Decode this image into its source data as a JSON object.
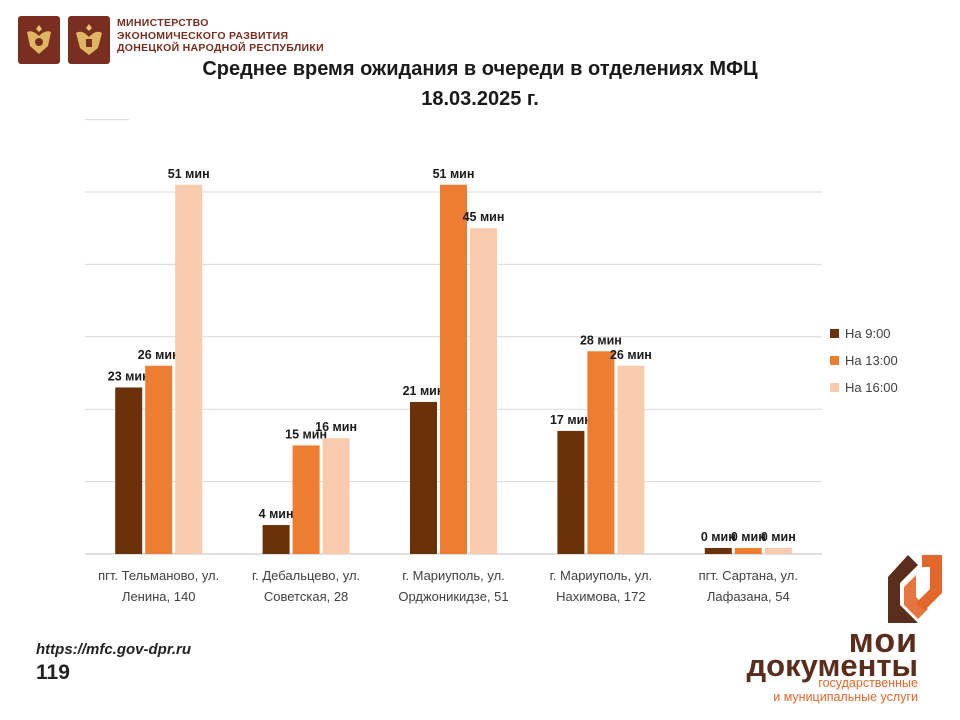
{
  "header": {
    "ministry_lines": [
      "МИНИСТЕРСТВО",
      "ЭКОНОМИЧЕСКОГО РАЗВИТИЯ",
      "ДОНЕЦКОЙ НАРОДНОЙ РЕСПУБЛИКИ"
    ],
    "emblem_icons": [
      "coat-of-arms-russia-icon",
      "coat-of-arms-dpr-icon"
    ]
  },
  "title_line1": "Среднее время ожидания в очереди в отделениях МФЦ",
  "title_line2": "18.03.2025   г.",
  "chart_data": {
    "type": "bar",
    "categories": [
      [
        "пгт. Тельманово,  ул.",
        "Ленина, 140"
      ],
      [
        "г. Дебальцево, ул.",
        "Советская, 28"
      ],
      [
        "г. Мариуполь,  ул.",
        "Орджоникидзе, 51"
      ],
      [
        "г. Мариуполь,  ул.",
        "Нахимова, 172"
      ],
      [
        "пгт. Сартана, ул.",
        "Лафазана, 54"
      ]
    ],
    "series": [
      {
        "name": "На 9:00",
        "color": "#6b3209",
        "values": [
          23,
          4,
          21,
          17,
          0
        ]
      },
      {
        "name": "На 13:00",
        "color": "#ed7d31",
        "values": [
          26,
          15,
          51,
          28,
          0
        ]
      },
      {
        "name": "На 16:00",
        "color": "#f8cbad",
        "values": [
          51,
          16,
          45,
          26,
          0
        ]
      }
    ],
    "value_suffix": " мин",
    "ylim": [
      0,
      60
    ],
    "grid": true,
    "legend": "right"
  },
  "footer": {
    "url": "https://mfc.gov-dpr.ru",
    "phone": "119",
    "brand_line1": "мои",
    "brand_line2": "документы",
    "brand_line3": [
      "государственные",
      "и муниципальные услуги"
    ],
    "brand_colors": {
      "dark": "#5a2d1c",
      "accent": "#e2672a"
    }
  }
}
